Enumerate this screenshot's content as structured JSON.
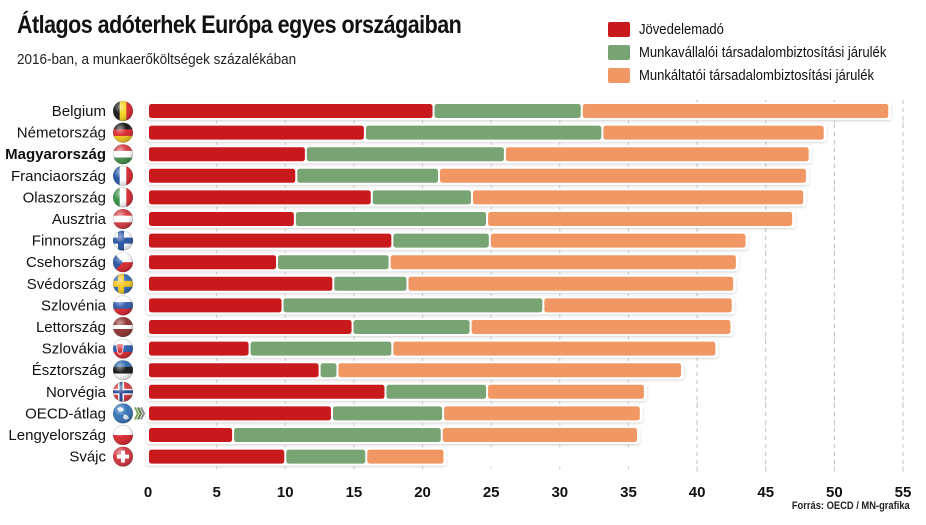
{
  "header": {
    "title": "Átlagos adóterhek Európa egyes országaiban",
    "subtitle": "2016-ban, a munkaerőköltségek százalékában"
  },
  "source": "Forrás: OECD / MN-grafika",
  "colors": {
    "income_tax": "#c8191c",
    "employee_ssc": "#78a372",
    "employer_ssc": "#f19763"
  },
  "chart_data": {
    "type": "bar",
    "orientation": "horizontal",
    "stacked": true,
    "title": "Átlagos adóterhek Európa egyes országaiban",
    "subtitle": "2016-ban, a munkaerőköltségek százalékában",
    "xlabel": "",
    "ylabel": "",
    "xlim": [
      0,
      55
    ],
    "xticks": [
      0,
      5,
      10,
      15,
      20,
      25,
      30,
      35,
      40,
      45,
      50,
      55
    ],
    "grid": "vertical dashed at 40, 45, 50, 55",
    "legend_position": "top-right",
    "highlighted_category": "Magyarország",
    "categories": [
      "Belgium",
      "Németország",
      "Magyarország",
      "Franciaország",
      "Olaszország",
      "Ausztria",
      "Finnország",
      "Csehország",
      "Svédország",
      "Szlovénia",
      "Lettország",
      "Szlovákia",
      "Észtország",
      "Norvégia",
      "OECD-átlag",
      "Lengyelország",
      "Svájc"
    ],
    "flags": [
      "belgium-flag",
      "germany-flag",
      "hungary-flag",
      "france-flag",
      "italy-flag",
      "austria-flag",
      "finland-flag",
      "czechia-flag",
      "sweden-flag",
      "slovenia-flag",
      "latvia-flag",
      "slovakia-flag",
      "estonia-flag",
      "norway-flag",
      "oecd-globe",
      "poland-flag",
      "switzerland-flag"
    ],
    "series": [
      {
        "name": "Jövedelemadó",
        "color": "#c8191c",
        "values": [
          20.8,
          15.8,
          11.5,
          10.8,
          16.3,
          10.7,
          17.8,
          9.4,
          13.5,
          9.8,
          14.9,
          7.4,
          12.5,
          17.3,
          13.4,
          6.2,
          10.0
        ]
      },
      {
        "name": "Munkavállalói társadalombiztosítási járulék",
        "color": "#78a372",
        "values": [
          10.8,
          17.3,
          14.5,
          10.4,
          7.3,
          14.0,
          7.1,
          8.2,
          5.4,
          19.0,
          8.6,
          10.4,
          1.3,
          7.4,
          8.1,
          15.2,
          5.9
        ]
      },
      {
        "name": "Munkáltatói társadalombiztosítási járulék",
        "color": "#f19763",
        "values": [
          22.4,
          16.2,
          22.2,
          26.8,
          24.2,
          22.3,
          18.7,
          25.3,
          23.8,
          13.8,
          19.0,
          23.6,
          25.1,
          11.5,
          14.4,
          14.3,
          5.7
        ]
      }
    ]
  }
}
